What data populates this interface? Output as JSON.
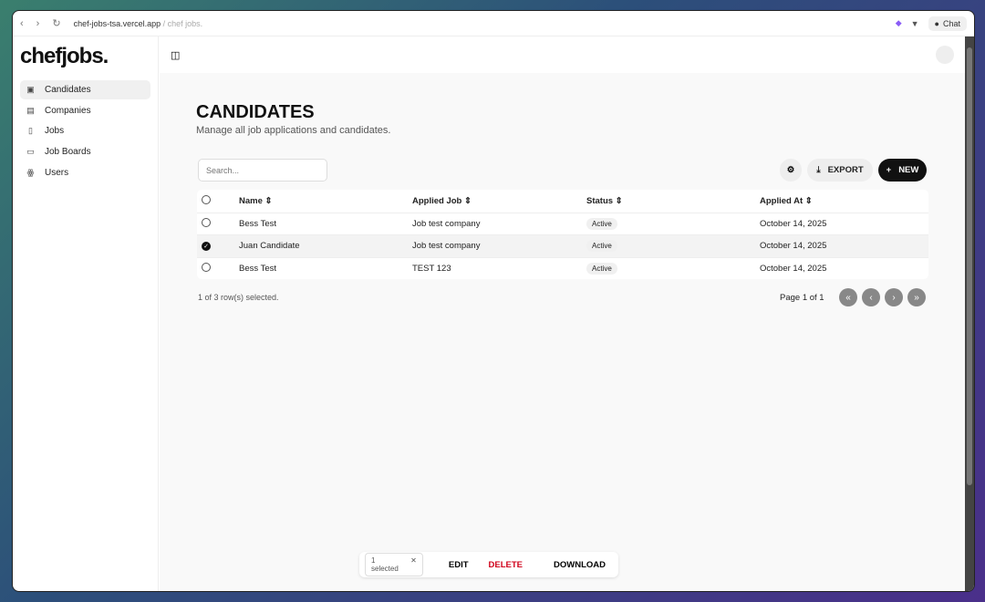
{
  "browser": {
    "url": "chef-jobs-tsa.vercel.app",
    "breadcrumb": "/ chef jobs.",
    "chat_label": "Chat"
  },
  "sidebar": {
    "logo": "chefjobs.",
    "items": [
      {
        "label": "Candidates",
        "icon": "contact-icon"
      },
      {
        "label": "Companies",
        "icon": "building-icon"
      },
      {
        "label": "Jobs",
        "icon": "file-icon"
      },
      {
        "label": "Job Boards",
        "icon": "folder-icon"
      },
      {
        "label": "Users",
        "icon": "users-icon"
      }
    ]
  },
  "page": {
    "title": "CANDIDATES",
    "subtitle": "Manage all job applications and candidates.",
    "search_placeholder": "Search...",
    "export_label": "EXPORT",
    "new_label": "NEW"
  },
  "table": {
    "headers": [
      "Name",
      "Applied Job",
      "Status",
      "Applied At"
    ],
    "rows": [
      {
        "name": "Bess Test",
        "job": "Job test company",
        "status": "Active",
        "applied": "October 14, 2025",
        "selected": false
      },
      {
        "name": "Juan Candidate",
        "job": "Job test company",
        "status": "Active",
        "applied": "October 14, 2025",
        "selected": true
      },
      {
        "name": "Bess Test",
        "job": "TEST 123",
        "status": "Active",
        "applied": "October 14, 2025",
        "selected": false
      }
    ]
  },
  "footer": {
    "selection": "1 of 3 row(s) selected.",
    "page": "Page 1 of 1"
  },
  "actions": {
    "selected": "1 selected",
    "edit": "EDIT",
    "delete": "DELETE",
    "download": "DOWNLOAD"
  },
  "colors": {
    "delete": "#d0021b",
    "primary": "#111111"
  }
}
